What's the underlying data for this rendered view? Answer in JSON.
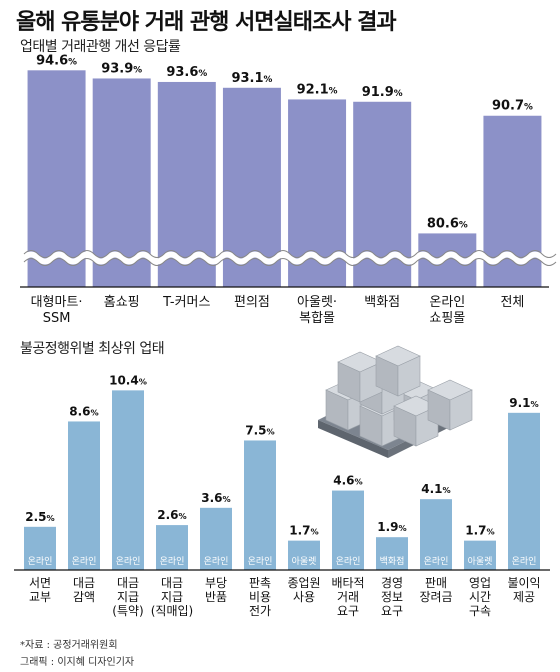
{
  "title": "올해 유통분야 거래 관행 서면실태조사 결과",
  "footer": {
    "source": "*자료 : 공정거래위원회",
    "credit": "그래픽 : 이지혜 디자인기자"
  },
  "colors": {
    "bar1": "#8c91c8",
    "bar2": "#8ab6d6",
    "axis": "#111111",
    "wave": "#ffffff"
  },
  "icon": "stacked-boxes-on-pallet",
  "chart_data": [
    {
      "type": "bar",
      "title": "업태별 거래관행 개선 응답률",
      "categories": [
        "대형마트·\nSSM",
        "홈쇼핑",
        "T-커머스",
        "편의점",
        "아울렛·\n복합몰",
        "백화점",
        "온라인\n쇼핑몰",
        "전체"
      ],
      "values": [
        94.6,
        93.9,
        93.6,
        93.1,
        92.1,
        91.9,
        80.6,
        90.7
      ],
      "value_labels": [
        "94.6%",
        "93.9%",
        "93.6%",
        "93.1%",
        "92.1%",
        "91.9%",
        "80.6%",
        "90.7%"
      ],
      "ylim": [
        76,
        96
      ],
      "axis_break": true,
      "grid": false
    },
    {
      "type": "bar",
      "title": "불공정행위별 최상위 업태",
      "categories": [
        "서면\n교부",
        "대금\n감액",
        "대금\n지급\n(특약)",
        "대금\n지급\n(직매입)",
        "부당\n반품",
        "판촉\n비용\n전가",
        "종업원\n사용",
        "배타적\n거래\n요구",
        "경영\n정보\n요구",
        "판매\n장려금",
        "영업\n시간\n구속",
        "불이익\n제공"
      ],
      "values": [
        2.5,
        8.6,
        10.4,
        2.6,
        3.6,
        7.5,
        1.7,
        4.6,
        1.9,
        4.1,
        1.7,
        9.1
      ],
      "value_labels": [
        "2.5%",
        "8.6%",
        "10.4%",
        "2.6%",
        "3.6%",
        "7.5%",
        "1.7%",
        "4.6%",
        "1.9%",
        "4.1%",
        "1.7%",
        "9.1%"
      ],
      "bar_labels": [
        "온라인",
        "온라인",
        "온라인",
        "온라인",
        "온라인",
        "온라인",
        "아울렛",
        "온라인",
        "백화점",
        "온라인",
        "아울렛",
        "온라인"
      ],
      "ylim": [
        0,
        11
      ],
      "grid": false
    }
  ]
}
